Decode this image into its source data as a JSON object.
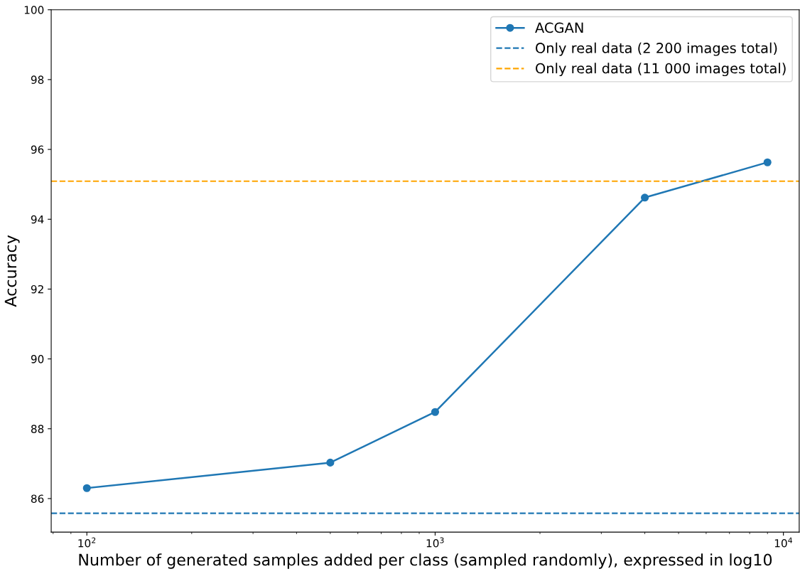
{
  "chart_data": {
    "type": "line",
    "xlabel": "Number of generated samples added per class (sampled randomly), expressed in log10",
    "ylabel": "Accuracy",
    "log": "x",
    "x": [
      100,
      500,
      1000,
      4000,
      9000
    ],
    "series": [
      {
        "name": "ACGAN",
        "color": "#1f77b4",
        "values": [
          86.3,
          87.03,
          88.48,
          94.62,
          95.63
        ]
      }
    ],
    "marker": "circle",
    "line_style": "solid",
    "xlim": [
      79,
      11100
    ],
    "xticks": [
      {
        "value": 100,
        "label": "10$^{2}$"
      },
      {
        "value": 1000,
        "label": "10$^{3}$"
      },
      {
        "value": 10000,
        "label": "10$^{4}$"
      }
    ],
    "ylim": [
      85.04,
      100
    ],
    "yticks": [
      86,
      88,
      90,
      92,
      94,
      96,
      98,
      100
    ],
    "ref_lines": [
      {
        "axis": "y",
        "value": 85.58,
        "label": "Only real data (2 200 images total)",
        "color": "#1f77b4",
        "line_style": "dashed"
      },
      {
        "axis": "y",
        "value": 95.09,
        "label": "Only real data (11 000 images total)",
        "color": "#ffa500",
        "line_style": "dashed"
      }
    ],
    "grid": false,
    "legend": "top right"
  }
}
